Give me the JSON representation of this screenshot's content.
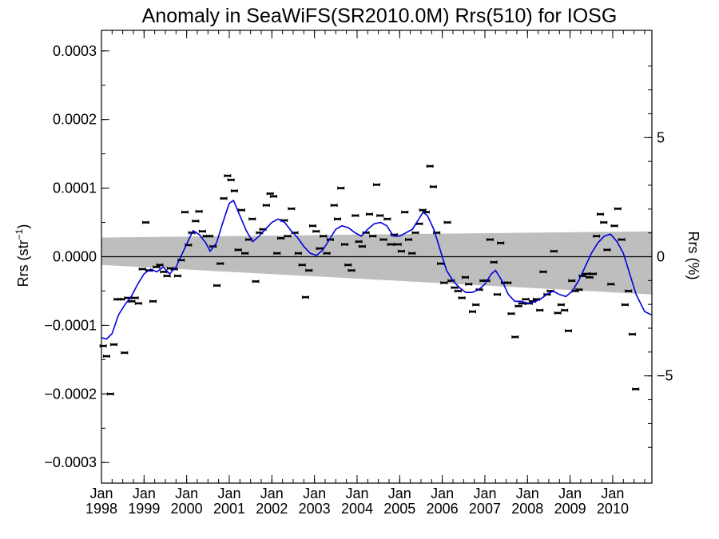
{
  "chart_data": {
    "type": "line",
    "title": "Anomaly in SeaWiFS(SR2010.0M) Rrs(510) for IOSG",
    "ylabel_left": "Rrs (str",
    "ylabel_left_sup": "−1",
    "ylabel_left_close": ")",
    "ylabel_right": "Rrs (%)",
    "x_range": [
      1998.0,
      2010.92
    ],
    "y_range": [
      -0.00033,
      0.00033
    ],
    "y2_range": [
      -9.5,
      9.5
    ],
    "y_ticks": [
      -0.0003,
      -0.0002,
      -0.0001,
      0.0,
      0.0001,
      0.0002,
      0.0003
    ],
    "y_tick_labels": [
      "−0.0003",
      "−0.0002",
      "−0.0001",
      "0.0000",
      "0.0001",
      "0.0002",
      "0.0003"
    ],
    "y2_ticks": [
      -5,
      0,
      5
    ],
    "y2_tick_labels": [
      "−5",
      "0",
      "5"
    ],
    "x_ticks": [
      1998,
      1999,
      2000,
      2001,
      2002,
      2003,
      2004,
      2005,
      2006,
      2007,
      2008,
      2009,
      2010
    ],
    "x_tick_month": "Jan",
    "x_tick_years": [
      "1998",
      "1999",
      "2000",
      "2001",
      "2002",
      "2003",
      "2004",
      "2005",
      "2006",
      "2007",
      "2008",
      "2009",
      "2010"
    ],
    "zero_line": 0.0,
    "uncertainty_band": {
      "x": [
        1998.0,
        2010.92
      ],
      "upper": [
        2.8e-05,
        3.7e-05
      ],
      "lower": [
        -1.2e-05,
        -5.5e-05
      ],
      "color": "#bebebe"
    },
    "smoothed_series": {
      "color": "#0000dd",
      "points": [
        [
          1998.0,
          -0.000118
        ],
        [
          1998.12,
          -0.00012
        ],
        [
          1998.25,
          -0.000112
        ],
        [
          1998.4,
          -8.5e-05
        ],
        [
          1998.55,
          -7e-05
        ],
        [
          1998.7,
          -5.8e-05
        ],
        [
          1998.85,
          -4e-05
        ],
        [
          1999.0,
          -2.5e-05
        ],
        [
          1999.15,
          -1.8e-05
        ],
        [
          1999.3,
          -2.2e-05
        ],
        [
          1999.45,
          -1.5e-05
        ],
        [
          1999.6,
          -2.5e-05
        ],
        [
          1999.75,
          -1.5e-05
        ],
        [
          1999.9,
          5e-06
        ],
        [
          2000.05,
          2.5e-05
        ],
        [
          2000.15,
          3.8e-05
        ],
        [
          2000.3,
          3.2e-05
        ],
        [
          2000.45,
          2e-05
        ],
        [
          2000.55,
          8e-06
        ],
        [
          2000.7,
          2e-05
        ],
        [
          2000.85,
          5e-05
        ],
        [
          2001.0,
          7.8e-05
        ],
        [
          2001.1,
          8.2e-05
        ],
        [
          2001.25,
          6e-05
        ],
        [
          2001.4,
          3.8e-05
        ],
        [
          2001.55,
          2.2e-05
        ],
        [
          2001.7,
          3e-05
        ],
        [
          2001.85,
          4e-05
        ],
        [
          2002.0,
          5e-05
        ],
        [
          2002.15,
          5.5e-05
        ],
        [
          2002.3,
          5e-05
        ],
        [
          2002.45,
          3.8e-05
        ],
        [
          2002.6,
          2.8e-05
        ],
        [
          2002.75,
          1.5e-05
        ],
        [
          2002.9,
          5e-06
        ],
        [
          2003.05,
          2e-06
        ],
        [
          2003.2,
          1e-05
        ],
        [
          2003.35,
          2.5e-05
        ],
        [
          2003.5,
          4e-05
        ],
        [
          2003.65,
          4.5e-05
        ],
        [
          2003.8,
          4.2e-05
        ],
        [
          2003.95,
          3.5e-05
        ],
        [
          2004.1,
          3e-05
        ],
        [
          2004.25,
          4e-05
        ],
        [
          2004.4,
          4.8e-05
        ],
        [
          2004.55,
          5e-05
        ],
        [
          2004.7,
          4.5e-05
        ],
        [
          2004.85,
          3e-05
        ],
        [
          2005.0,
          3e-05
        ],
        [
          2005.15,
          3.5e-05
        ],
        [
          2005.3,
          4e-05
        ],
        [
          2005.45,
          5.5e-05
        ],
        [
          2005.55,
          6.5e-05
        ],
        [
          2005.65,
          6e-05
        ],
        [
          2005.8,
          4e-05
        ],
        [
          2005.95,
          1e-05
        ],
        [
          2006.1,
          -2e-05
        ],
        [
          2006.25,
          -3.5e-05
        ],
        [
          2006.4,
          -4.5e-05
        ],
        [
          2006.55,
          -5.2e-05
        ],
        [
          2006.7,
          -5.2e-05
        ],
        [
          2006.85,
          -4.8e-05
        ],
        [
          2007.0,
          -4e-05
        ],
        [
          2007.15,
          -2.5e-05
        ],
        [
          2007.25,
          -2e-05
        ],
        [
          2007.4,
          -3.5e-05
        ],
        [
          2007.55,
          -5.5e-05
        ],
        [
          2007.7,
          -6.5e-05
        ],
        [
          2007.85,
          -6.5e-05
        ],
        [
          2008.0,
          -6.8e-05
        ],
        [
          2008.15,
          -6.6e-05
        ],
        [
          2008.3,
          -6.2e-05
        ],
        [
          2008.45,
          -5.5e-05
        ],
        [
          2008.6,
          -5e-05
        ],
        [
          2008.75,
          -5.5e-05
        ],
        [
          2008.9,
          -5.8e-05
        ],
        [
          2009.05,
          -5e-05
        ],
        [
          2009.2,
          -3.5e-05
        ],
        [
          2009.35,
          -1.5e-05
        ],
        [
          2009.5,
          5e-06
        ],
        [
          2009.65,
          2e-05
        ],
        [
          2009.8,
          3e-05
        ],
        [
          2009.95,
          3.3e-05
        ],
        [
          2010.1,
          2.2e-05
        ],
        [
          2010.25,
          5e-06
        ],
        [
          2010.4,
          -2.5e-05
        ],
        [
          2010.55,
          -5.5e-05
        ],
        [
          2010.75,
          -8e-05
        ],
        [
          2010.92,
          -8.5e-05
        ]
      ]
    },
    "monthly_points": [
      [
        1998.04,
        -0.00013
      ],
      [
        1998.12,
        -0.000145
      ],
      [
        1998.21,
        -0.0002
      ],
      [
        1998.29,
        -0.000128
      ],
      [
        1998.37,
        -6.2e-05
      ],
      [
        1998.46,
        -6.2e-05
      ],
      [
        1998.54,
        -0.00014
      ],
      [
        1998.62,
        -6e-05
      ],
      [
        1998.71,
        -6.5e-05
      ],
      [
        1998.79,
        -6e-05
      ],
      [
        1998.87,
        -6.8e-05
      ],
      [
        1998.96,
        -1.8e-05
      ],
      [
        1999.04,
        5e-05
      ],
      [
        1999.12,
        -2e-05
      ],
      [
        1999.21,
        -6.5e-05
      ],
      [
        1999.29,
        -1.5e-05
      ],
      [
        1999.37,
        -1.2e-05
      ],
      [
        1999.46,
        -2.2e-05
      ],
      [
        1999.54,
        -2.8e-05
      ],
      [
        1999.62,
        -1.7e-05
      ],
      [
        1999.71,
        -1.8e-05
      ],
      [
        1999.79,
        -2.8e-05
      ],
      [
        1999.87,
        -5e-06
      ],
      [
        1999.96,
        6.5e-05
      ],
      [
        2000.04,
        1.7e-05
      ],
      [
        2000.12,
        3.5e-05
      ],
      [
        2000.21,
        5.2e-05
      ],
      [
        2000.29,
        6.6e-05
      ],
      [
        2000.37,
        3.7e-05
      ],
      [
        2000.46,
        3e-05
      ],
      [
        2000.54,
        3e-05
      ],
      [
        2000.62,
        1.5e-05
      ],
      [
        2000.71,
        -4.2e-05
      ],
      [
        2000.79,
        -1e-05
      ],
      [
        2000.87,
        8.5e-05
      ],
      [
        2000.96,
        0.000118
      ],
      [
        2001.04,
        0.000112
      ],
      [
        2001.12,
        9.6e-05
      ],
      [
        2001.21,
        1e-05
      ],
      [
        2001.29,
        6.8e-05
      ],
      [
        2001.37,
        5e-06
      ],
      [
        2001.46,
        2.5e-05
      ],
      [
        2001.54,
        5.5e-05
      ],
      [
        2001.62,
        -3.6e-05
      ],
      [
        2001.71,
        3.5e-05
      ],
      [
        2001.79,
        4e-05
      ],
      [
        2001.87,
        7.5e-05
      ],
      [
        2001.96,
        9.2e-05
      ],
      [
        2002.04,
        8.8e-05
      ],
      [
        2002.12,
        5e-06
      ],
      [
        2002.21,
        2.7e-05
      ],
      [
        2002.29,
        5.3e-05
      ],
      [
        2002.37,
        3e-05
      ],
      [
        2002.46,
        7e-05
      ],
      [
        2002.54,
        3.5e-05
      ],
      [
        2002.62,
        5e-06
      ],
      [
        2002.71,
        -1.2e-05
      ],
      [
        2002.79,
        -5.9e-05
      ],
      [
        2002.87,
        -2e-05
      ],
      [
        2002.96,
        4.5e-05
      ],
      [
        2003.04,
        3.7e-05
      ],
      [
        2003.12,
        1.2e-05
      ],
      [
        2003.21,
        3e-05
      ],
      [
        2003.29,
        5e-06
      ],
      [
        2003.37,
        2.5e-05
      ],
      [
        2003.46,
        7.5e-05
      ],
      [
        2003.54,
        5.5e-05
      ],
      [
        2003.62,
        0.0001
      ],
      [
        2003.71,
        1.8e-05
      ],
      [
        2003.79,
        -1.2e-05
      ],
      [
        2003.87,
        -2e-05
      ],
      [
        2003.96,
        6e-05
      ],
      [
        2004.04,
        2.2e-05
      ],
      [
        2004.12,
        1.5e-05
      ],
      [
        2004.21,
        3.5e-05
      ],
      [
        2004.29,
        6.2e-05
      ],
      [
        2004.37,
        3e-05
      ],
      [
        2004.46,
        0.000105
      ],
      [
        2004.54,
        6e-05
      ],
      [
        2004.62,
        2.5e-05
      ],
      [
        2004.71,
        5.5e-05
      ],
      [
        2004.79,
        1.8e-05
      ],
      [
        2004.87,
        3.2e-05
      ],
      [
        2004.96,
        1.8e-05
      ],
      [
        2005.04,
        8e-06
      ],
      [
        2005.12,
        6.5e-05
      ],
      [
        2005.21,
        2.5e-05
      ],
      [
        2005.29,
        5e-06
      ],
      [
        2005.37,
        3.5e-05
      ],
      [
        2005.46,
        4.8e-05
      ],
      [
        2005.54,
        6.8e-05
      ],
      [
        2005.62,
        6.5e-05
      ],
      [
        2005.71,
        0.000132
      ],
      [
        2005.79,
        0.000102
      ],
      [
        2005.87,
        3.5e-05
      ],
      [
        2005.96,
        -1e-05
      ],
      [
        2006.04,
        -3.8e-05
      ],
      [
        2006.12,
        5e-05
      ],
      [
        2006.21,
        -3.5e-05
      ],
      [
        2006.29,
        -4.5e-05
      ],
      [
        2006.37,
        -5e-05
      ],
      [
        2006.46,
        -6e-05
      ],
      [
        2006.54,
        -3e-05
      ],
      [
        2006.62,
        -4e-05
      ],
      [
        2006.71,
        -8e-05
      ],
      [
        2006.79,
        -7e-05
      ],
      [
        2006.87,
        -4.8e-05
      ],
      [
        2006.96,
        -3.5e-05
      ],
      [
        2007.04,
        -3.5e-05
      ],
      [
        2007.12,
        2.5e-05
      ],
      [
        2007.21,
        -8e-06
      ],
      [
        2007.29,
        -5.5e-05
      ],
      [
        2007.37,
        2e-05
      ],
      [
        2007.46,
        -3.8e-05
      ],
      [
        2007.54,
        -3.8e-05
      ],
      [
        2007.62,
        -8.3e-05
      ],
      [
        2007.71,
        -0.000117
      ],
      [
        2007.79,
        -7.2e-05
      ],
      [
        2007.87,
        -6.8e-05
      ],
      [
        2007.96,
        -6.2e-05
      ],
      [
        2008.04,
        -6.8e-05
      ],
      [
        2008.12,
        -6.5e-05
      ],
      [
        2008.21,
        -6.2e-05
      ],
      [
        2008.29,
        -7.8e-05
      ],
      [
        2008.37,
        -2.2e-05
      ],
      [
        2008.46,
        -5.5e-05
      ],
      [
        2008.54,
        -5e-05
      ],
      [
        2008.62,
        8e-06
      ],
      [
        2008.71,
        -8.2e-05
      ],
      [
        2008.79,
        -7e-05
      ],
      [
        2008.87,
        -7.8e-05
      ],
      [
        2008.96,
        -0.000108
      ],
      [
        2009.04,
        -3.5e-05
      ],
      [
        2009.12,
        -5e-05
      ],
      [
        2009.21,
        -4.8e-05
      ],
      [
        2009.29,
        -2.8e-05
      ],
      [
        2009.37,
        -2.5e-05
      ],
      [
        2009.46,
        -3e-05
      ],
      [
        2009.54,
        -2.5e-05
      ],
      [
        2009.62,
        3e-05
      ],
      [
        2009.71,
        6.2e-05
      ],
      [
        2009.79,
        5e-05
      ],
      [
        2009.87,
        1e-05
      ],
      [
        2009.96,
        -4e-05
      ],
      [
        2010.04,
        4.5e-05
      ],
      [
        2010.12,
        7e-05
      ],
      [
        2010.21,
        2.5e-05
      ],
      [
        2010.29,
        -7e-05
      ],
      [
        2010.37,
        -5e-05
      ],
      [
        2010.46,
        -0.000113
      ],
      [
        2010.54,
        -0.000193
      ]
    ]
  }
}
